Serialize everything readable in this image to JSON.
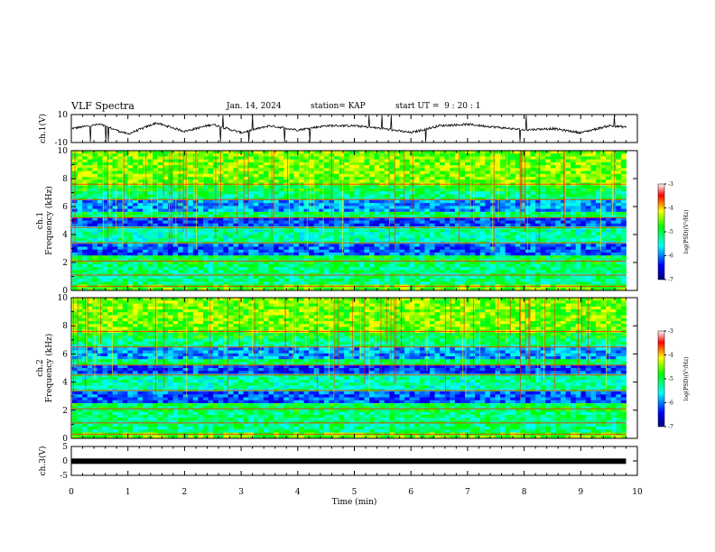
{
  "header": {
    "title": "VLF Spectra",
    "date": "Jan. 14, 2024",
    "station": "station= KAP",
    "start": "start UT =  9 : 20 : 1"
  },
  "chart_data": [
    {
      "type": "line",
      "panel": "ch1-waveform",
      "ylabel": "ch.1(V)",
      "ylim": [
        -10,
        10
      ],
      "yticks": [
        "10",
        "-10"
      ],
      "xlim": [
        0,
        10
      ],
      "description_values": "oscillating signal mostly between -5 and 5 V",
      "x": [
        0,
        0.5,
        1,
        1.5,
        2,
        2.5,
        3,
        3.5,
        4,
        4.5,
        5,
        5.5,
        6,
        6.5,
        7,
        7.5,
        8,
        8.5,
        9,
        9.5,
        9.8
      ],
      "y": [
        0,
        3,
        -4,
        4,
        -2,
        3,
        -3,
        2,
        -1,
        2,
        2,
        0,
        -3,
        2,
        3,
        1,
        -1,
        0,
        -3,
        2,
        1
      ]
    },
    {
      "type": "heatmap",
      "panel": "ch1-spectrogram",
      "ylabel": "ch.1\nFrequency (kHz)",
      "ylabel_line1": "ch.1",
      "ylabel_line2": "Frequency (kHz)",
      "ylim": [
        0,
        10
      ],
      "yticks": [
        "0",
        "2",
        "4",
        "6",
        "8",
        "10"
      ],
      "xlim": [
        0,
        10
      ],
      "colorbar": {
        "label": "log(PSD)(V²/Hz)",
        "range": [
          -7,
          -3
        ],
        "ticks": [
          "-3",
          "-4",
          "-5",
          "-6",
          "-7"
        ]
      }
    },
    {
      "type": "heatmap",
      "panel": "ch2-spectrogram",
      "ylabel_line1": "ch.2",
      "ylabel_line2": "Frequency (kHz)",
      "ylim": [
        0,
        10
      ],
      "yticks": [
        "0",
        "2",
        "4",
        "6",
        "8",
        "10"
      ],
      "xlim": [
        0,
        10
      ],
      "colorbar": {
        "label": "log(PSD)(V²/Hz)",
        "range": [
          -7,
          -3
        ],
        "ticks": [
          "-3",
          "-4",
          "-5",
          "-6",
          "-7"
        ]
      }
    },
    {
      "type": "line",
      "panel": "ch3-waveform",
      "ylabel": "ch.3(V)",
      "ylim": [
        -5,
        5
      ],
      "yticks": [
        "5",
        "0",
        "-5"
      ],
      "xlim": [
        0,
        10
      ],
      "x": [
        0,
        9.8
      ],
      "y": [
        -0.1,
        -0.1
      ]
    }
  ],
  "xaxis": {
    "label": "Time (min)",
    "ticks": [
      "0",
      "1",
      "2",
      "3",
      "4",
      "5",
      "6",
      "7",
      "8",
      "9",
      "10"
    ]
  },
  "colorbar_label": "log(PSD)(V²/Hz)"
}
